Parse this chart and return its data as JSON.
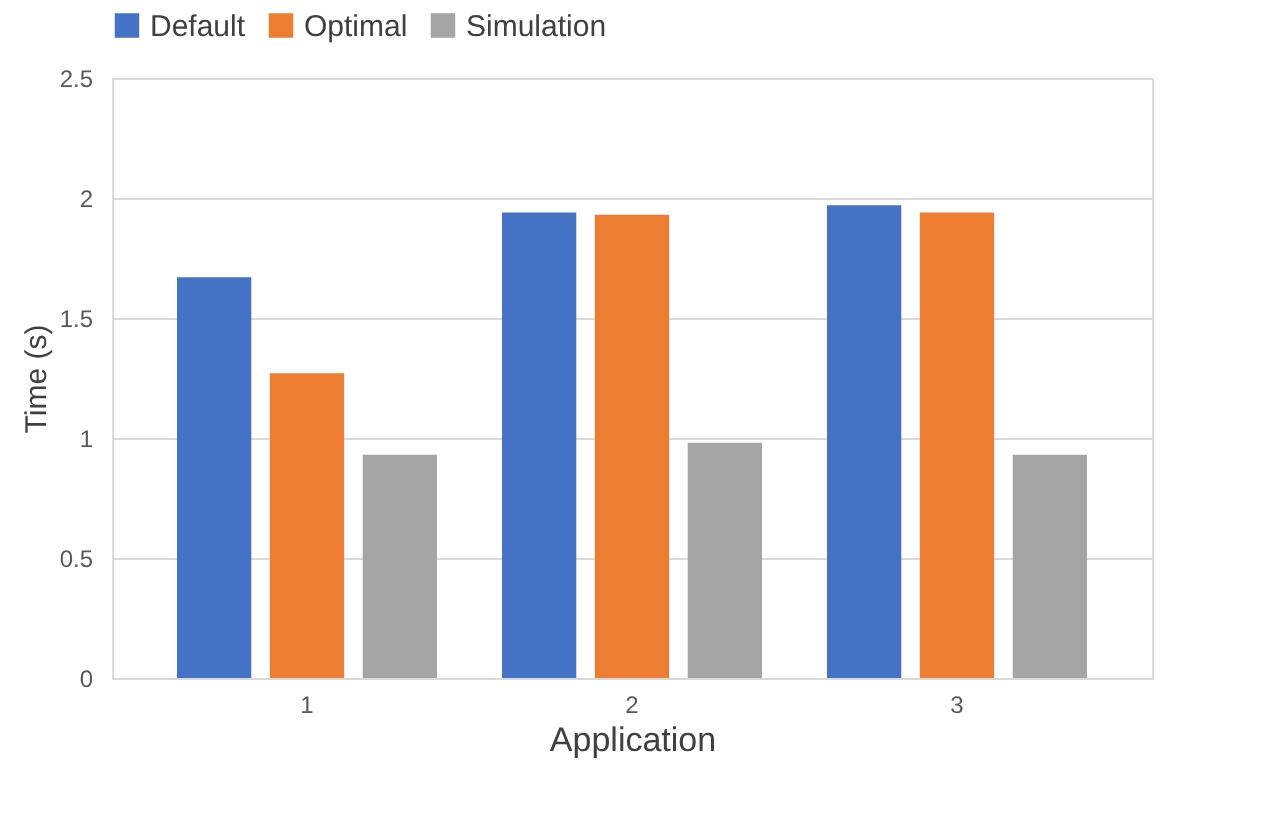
{
  "chart_data": {
    "type": "bar",
    "xlabel": "Application",
    "ylabel": "Time (s)",
    "categories": [
      "1",
      "2",
      "3"
    ],
    "series": [
      {
        "name": "Default",
        "color": "#4472c4",
        "values": [
          1.67,
          1.94,
          1.97
        ]
      },
      {
        "name": "Optimal",
        "color": "#ed7d31",
        "values": [
          1.27,
          1.93,
          1.94
        ]
      },
      {
        "name": "Simulation",
        "color": "#a5a5a5",
        "values": [
          0.93,
          0.98,
          0.93
        ]
      }
    ],
    "ylim": [
      0,
      2.5
    ],
    "yticks": [
      0,
      0.5,
      1,
      1.5,
      2,
      2.5
    ],
    "grid": "y",
    "legend": "top"
  }
}
